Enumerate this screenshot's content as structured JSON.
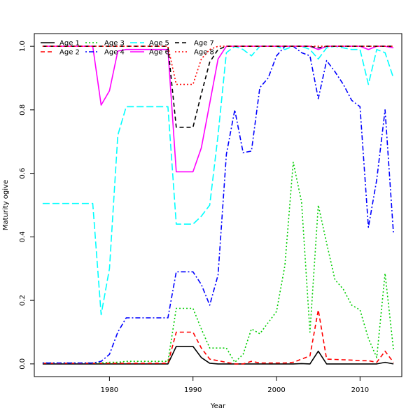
{
  "chart_data": {
    "type": "line",
    "title": "",
    "xlabel": "Year",
    "ylabel": "Maturity ogive",
    "xlim": [
      1971,
      2015
    ],
    "ylim": [
      -0.04,
      1.04
    ],
    "x_ticks": [
      1980,
      1990,
      2000,
      2010
    ],
    "y_ticks": [
      0.0,
      0.2,
      0.4,
      0.6,
      0.8,
      1.0
    ],
    "y_tick_labels": [
      "0.0",
      "0.2",
      "0.4",
      "0.6",
      "0.8",
      "1.0"
    ],
    "grid": false,
    "legend_position": "top-left",
    "x": [
      1972,
      1973,
      1974,
      1975,
      1976,
      1977,
      1978,
      1979,
      1980,
      1981,
      1982,
      1983,
      1984,
      1985,
      1986,
      1987,
      1988,
      1989,
      1990,
      1991,
      1992,
      1993,
      1994,
      1995,
      1996,
      1997,
      1998,
      1999,
      2000,
      2001,
      2002,
      2003,
      2004,
      2005,
      2006,
      2007,
      2008,
      2009,
      2010,
      2011,
      2012,
      2013,
      2014
    ],
    "series": [
      {
        "name": "Age 1",
        "color": "#000000",
        "dash": "solid",
        "values": [
          0.0,
          0.0,
          0.0,
          0.0,
          0.0,
          0.0,
          0.0,
          0.0,
          0.0,
          0.0,
          0.0,
          0.0,
          0.0,
          0.0,
          0.0,
          0.0,
          0.055,
          0.055,
          0.055,
          0.02,
          0.002,
          0.0,
          0.0,
          0.0,
          0.0,
          0.0,
          0.0,
          0.0,
          0.0,
          0.0,
          0.0,
          0.001,
          0.0,
          0.04,
          0.0,
          0.0,
          0.0,
          0.0,
          0.0,
          0.0,
          0.0,
          0.005,
          0.0
        ]
      },
      {
        "name": "Age 2",
        "color": "#ff0000",
        "dash": "dashed",
        "values": [
          0.002,
          0.002,
          0.002,
          0.002,
          0.002,
          0.002,
          0.002,
          0.002,
          0.002,
          0.002,
          0.002,
          0.002,
          0.002,
          0.002,
          0.002,
          0.002,
          0.1,
          0.1,
          0.1,
          0.05,
          0.015,
          0.01,
          0.005,
          0.0,
          0.0,
          0.008,
          0.003,
          0.003,
          0.003,
          0.003,
          0.005,
          0.015,
          0.025,
          0.17,
          0.015,
          0.014,
          0.013,
          0.012,
          0.01,
          0.01,
          0.005,
          0.04,
          0.005
        ]
      },
      {
        "name": "Age 3",
        "color": "#00cd00",
        "dash": "dotted",
        "values": [
          0.003,
          0.003,
          0.003,
          0.003,
          0.003,
          0.003,
          0.003,
          0.003,
          0.005,
          0.005,
          0.008,
          0.008,
          0.008,
          0.008,
          0.008,
          0.008,
          0.175,
          0.175,
          0.175,
          0.11,
          0.05,
          0.05,
          0.05,
          0.005,
          0.03,
          0.11,
          0.095,
          0.13,
          0.165,
          0.31,
          0.635,
          0.51,
          0.1,
          0.5,
          0.38,
          0.265,
          0.235,
          0.185,
          0.17,
          0.08,
          0.02,
          0.285,
          0.045
        ]
      },
      {
        "name": "Age 4",
        "color": "#0000ff",
        "dash": "dashdot",
        "values": [
          0.003,
          0.003,
          0.003,
          0.003,
          0.003,
          0.003,
          0.003,
          0.008,
          0.03,
          0.1,
          0.145,
          0.145,
          0.145,
          0.145,
          0.145,
          0.145,
          0.29,
          0.29,
          0.29,
          0.25,
          0.185,
          0.28,
          0.66,
          0.8,
          0.665,
          0.67,
          0.87,
          0.9,
          0.97,
          1.0,
          1.0,
          0.98,
          0.97,
          0.835,
          0.955,
          0.92,
          0.88,
          0.83,
          0.81,
          0.43,
          0.58,
          0.8,
          0.41
        ]
      },
      {
        "name": "Age 5",
        "color": "#00ffff",
        "dash": "longdash",
        "values": [
          0.505,
          0.505,
          0.505,
          0.505,
          0.505,
          0.505,
          0.505,
          0.155,
          0.3,
          0.72,
          0.81,
          0.81,
          0.81,
          0.81,
          0.81,
          0.81,
          0.44,
          0.44,
          0.44,
          0.465,
          0.5,
          0.72,
          0.98,
          1.0,
          0.99,
          0.97,
          1.0,
          1.0,
          1.0,
          0.99,
          1.0,
          1.0,
          0.99,
          0.96,
          0.995,
          1.0,
          0.995,
          0.99,
          0.99,
          0.88,
          0.99,
          0.98,
          0.9
        ]
      },
      {
        "name": "Age 6",
        "color": "#ff00ff",
        "dash": "solid",
        "values": [
          1.0,
          1.0,
          1.0,
          1.0,
          1.0,
          1.0,
          1.0,
          0.815,
          0.86,
          0.985,
          0.99,
          0.99,
          0.99,
          0.99,
          0.99,
          0.99,
          0.605,
          0.605,
          0.605,
          0.68,
          0.82,
          0.96,
          1.0,
          1.0,
          1.0,
          1.0,
          1.0,
          1.0,
          1.0,
          1.0,
          1.0,
          1.0,
          1.0,
          0.99,
          1.0,
          1.0,
          1.0,
          1.0,
          1.0,
          0.99,
          1.0,
          1.0,
          0.995
        ]
      },
      {
        "name": "Age 7",
        "color": "#000000",
        "dash": "dashed",
        "values": [
          1.0,
          1.0,
          1.0,
          1.0,
          1.0,
          1.0,
          1.0,
          1.0,
          1.0,
          1.0,
          1.0,
          1.0,
          1.0,
          1.0,
          1.0,
          1.0,
          0.745,
          0.745,
          0.745,
          0.85,
          0.95,
          0.99,
          1.0,
          1.0,
          1.0,
          1.0,
          1.0,
          1.0,
          1.0,
          1.0,
          1.0,
          1.0,
          1.0,
          0.995,
          1.0,
          1.0,
          1.0,
          1.0,
          1.0,
          1.0,
          1.0,
          1.0,
          1.0
        ]
      },
      {
        "name": "Age 8",
        "color": "#ff0000",
        "dash": "dotted",
        "values": [
          1.0,
          1.0,
          1.0,
          1.0,
          1.0,
          1.0,
          1.0,
          1.0,
          1.0,
          1.0,
          1.0,
          1.0,
          1.0,
          1.0,
          1.0,
          1.0,
          0.88,
          0.88,
          0.88,
          0.96,
          0.99,
          1.0,
          1.0,
          1.0,
          1.0,
          1.0,
          1.0,
          1.0,
          1.0,
          1.0,
          1.0,
          1.0,
          1.0,
          1.0,
          1.0,
          1.0,
          1.0,
          1.0,
          1.0,
          1.0,
          1.0,
          1.0,
          1.0
        ]
      }
    ]
  }
}
